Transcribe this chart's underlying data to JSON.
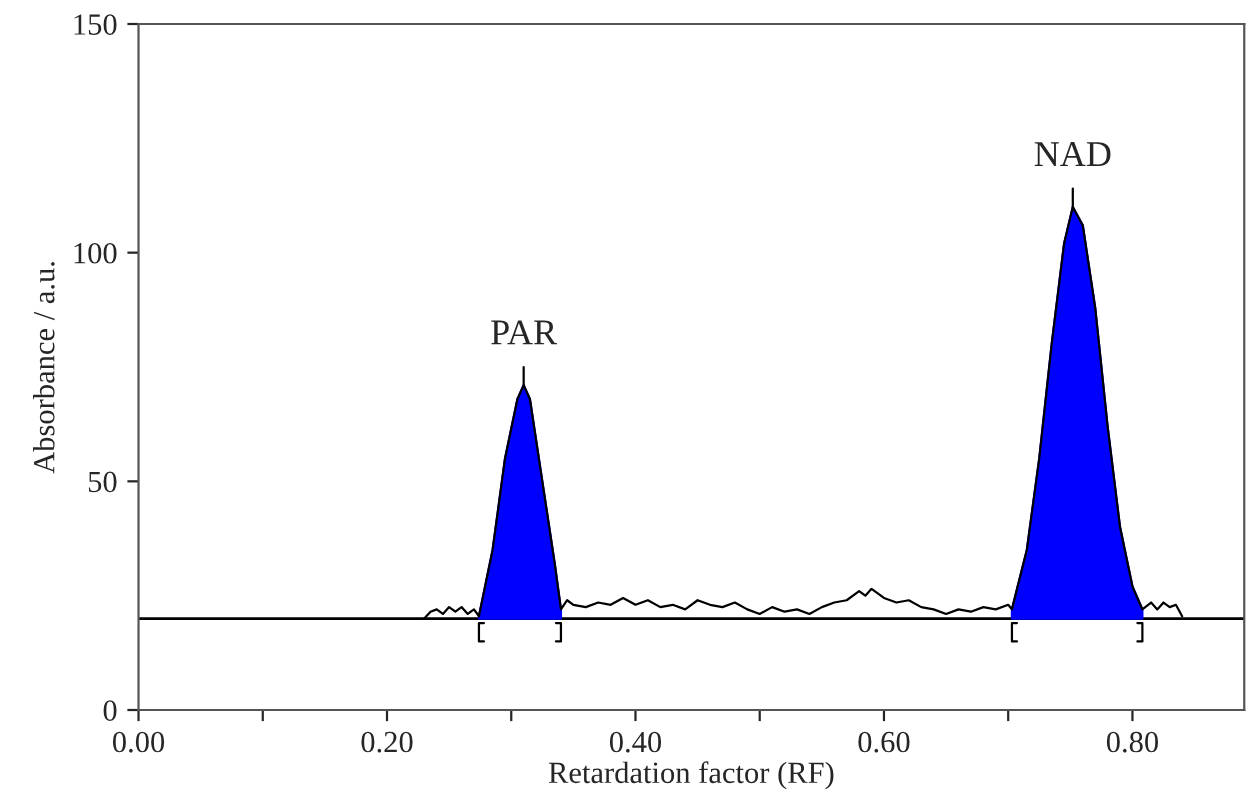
{
  "chart_data": {
    "type": "line",
    "xlabel": "Retardation factor (RF)",
    "ylabel": "Absorbance / a.u.",
    "xlim": [
      0,
      0.89
    ],
    "ylim": [
      0,
      150
    ],
    "xticks": [
      {
        "value": 0,
        "label": "0.00"
      },
      {
        "value": 0.1,
        "label": null
      },
      {
        "value": 0.2,
        "label": "0.20"
      },
      {
        "value": 0.3,
        "label": null
      },
      {
        "value": 0.4,
        "label": "0.40"
      },
      {
        "value": 0.5,
        "label": null
      },
      {
        "value": 0.6,
        "label": "0.60"
      },
      {
        "value": 0.7,
        "label": null
      },
      {
        "value": 0.8,
        "label": "0.80"
      }
    ],
    "yticks": [
      0,
      50,
      100,
      150
    ],
    "grid": false,
    "legend": false,
    "marker": "none",
    "line_style": "solid",
    "ref_lines": [
      {
        "axis": "y",
        "value": 20,
        "label": null,
        "color": "#000000"
      }
    ],
    "annotations": [
      {
        "text": "PAR",
        "x": 0.31,
        "y": 71
      },
      {
        "text": "NAD",
        "x": 0.752,
        "y": 110
      }
    ],
    "series": [
      {
        "color": "#000000",
        "x": [
          0.23,
          0.235,
          0.24,
          0.245,
          0.25,
          0.255,
          0.26,
          0.265,
          0.27,
          0.274,
          0.285,
          0.295,
          0.305,
          0.31,
          0.315,
          0.325,
          0.335,
          0.34,
          0.345,
          0.35,
          0.36,
          0.37,
          0.38,
          0.39,
          0.4,
          0.41,
          0.42,
          0.43,
          0.44,
          0.45,
          0.46,
          0.47,
          0.48,
          0.49,
          0.5,
          0.51,
          0.52,
          0.53,
          0.54,
          0.55,
          0.56,
          0.57,
          0.58,
          0.585,
          0.59,
          0.6,
          0.61,
          0.62,
          0.63,
          0.64,
          0.65,
          0.66,
          0.67,
          0.68,
          0.69,
          0.7,
          0.703,
          0.715,
          0.725,
          0.735,
          0.745,
          0.752,
          0.76,
          0.77,
          0.78,
          0.79,
          0.8,
          0.808,
          0.815,
          0.82,
          0.825,
          0.83,
          0.835,
          0.84
        ],
        "values": [
          20,
          21.5,
          22,
          21,
          22.5,
          21.5,
          22.5,
          21,
          22,
          20.5,
          35,
          55,
          68,
          71,
          68,
          50,
          32,
          22,
          24,
          23,
          22.5,
          23.5,
          23,
          24.5,
          23,
          24,
          22.5,
          23,
          22,
          24,
          23,
          22.5,
          23.5,
          22,
          21,
          22.5,
          21.5,
          22,
          21,
          22.5,
          23.5,
          24,
          26,
          25,
          26.5,
          24.5,
          23.5,
          24,
          22.5,
          22,
          21,
          22,
          21.5,
          22.5,
          22,
          23,
          22,
          35,
          55,
          80,
          102,
          110,
          106,
          88,
          62,
          40,
          27,
          22,
          23.5,
          22,
          23.5,
          22.5,
          23,
          20.5
        ]
      },
      {
        "type": "area",
        "color": "#0000ff",
        "x": [
          0.274,
          0.285,
          0.295,
          0.305,
          0.31,
          0.315,
          0.325,
          0.335,
          0.34
        ],
        "values": [
          20.5,
          35,
          55,
          68,
          71,
          68,
          50,
          32,
          22
        ]
      },
      {
        "type": "area",
        "color": "#0000ff",
        "x": [
          0.703,
          0.715,
          0.725,
          0.735,
          0.745,
          0.752,
          0.76,
          0.77,
          0.78,
          0.79,
          0.8,
          0.808
        ],
        "values": [
          22,
          35,
          55,
          80,
          102,
          110,
          106,
          88,
          62,
          40,
          27,
          22
        ]
      }
    ]
  }
}
